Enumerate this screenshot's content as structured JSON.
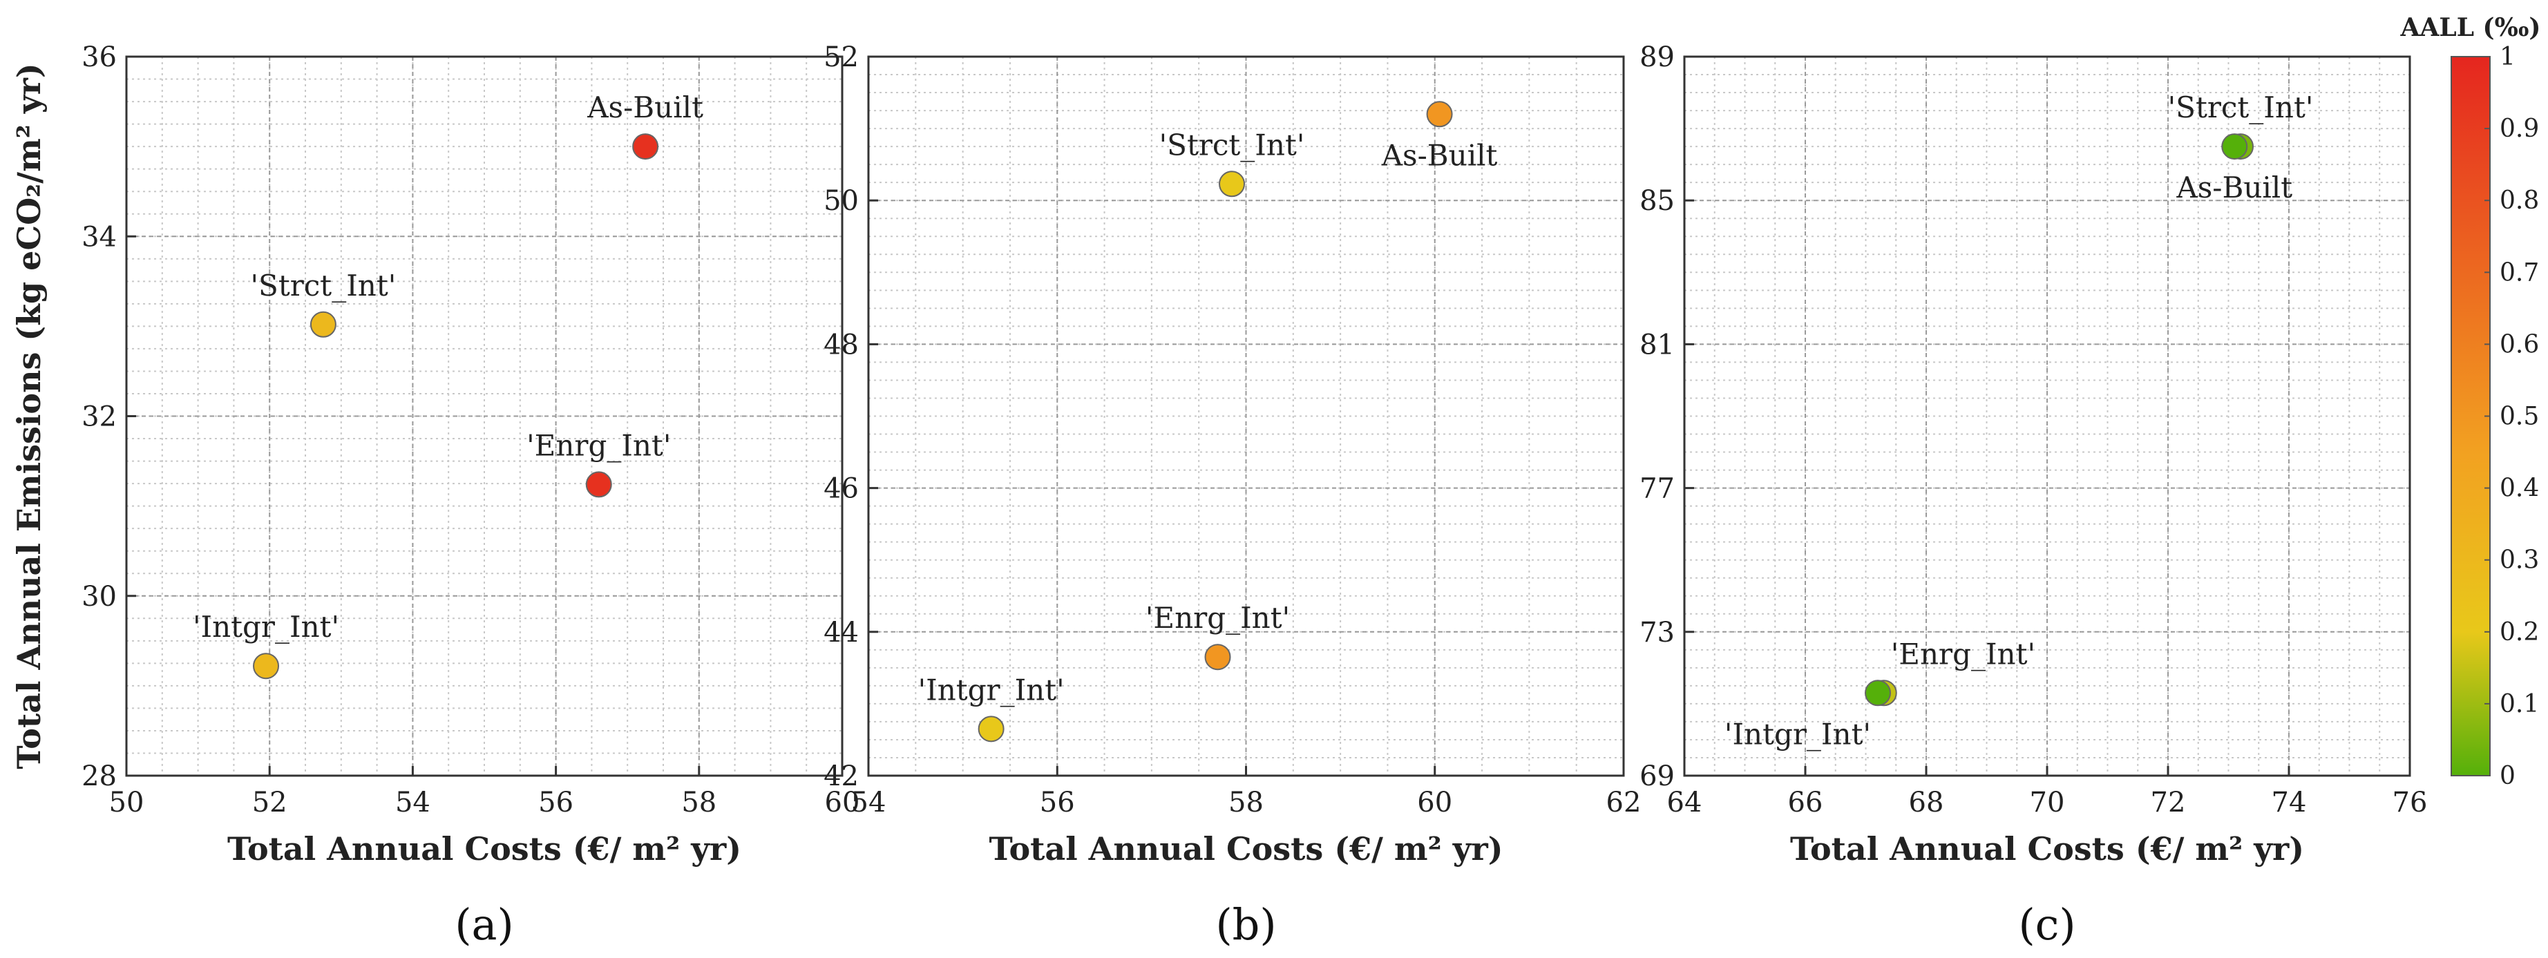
{
  "chart_data": [
    {
      "type": "scatter",
      "panel_label": "(a)",
      "xlabel": "Total Annual Costs (€/ m² yr)",
      "ylabel": "Total Annual Emissions (kg eCO₂/m² yr)",
      "xlim": [
        50,
        60
      ],
      "ylim": [
        28,
        36
      ],
      "xticks": [
        50,
        52,
        54,
        56,
        58,
        60
      ],
      "yticks": [
        28,
        30,
        32,
        34,
        36
      ],
      "grid": true,
      "points": [
        {
          "label": "As-Built",
          "x": 57.25,
          "y": 35.0,
          "aall": 0.95,
          "label_pos": "above"
        },
        {
          "label": "'Strct_Int'",
          "x": 52.75,
          "y": 33.02,
          "aall": 0.3,
          "label_pos": "above"
        },
        {
          "label": "'Enrg_Int'",
          "x": 56.6,
          "y": 31.24,
          "aall": 0.95,
          "label_pos": "above"
        },
        {
          "label": "'Intgr_Int'",
          "x": 51.95,
          "y": 29.22,
          "aall": 0.3,
          "label_pos": "above"
        }
      ]
    },
    {
      "type": "scatter",
      "panel_label": "(b)",
      "xlabel": "Total Annual Costs (€/ m² yr)",
      "ylabel": "",
      "xlim": [
        54,
        62
      ],
      "ylim": [
        42,
        52
      ],
      "xticks": [
        54,
        56,
        58,
        60,
        62
      ],
      "yticks": [
        42,
        44,
        46,
        48,
        50,
        52
      ],
      "grid": true,
      "points": [
        {
          "label": "As-Built",
          "x": 60.05,
          "y": 51.2,
          "aall": 0.5,
          "label_pos": "below"
        },
        {
          "label": "'Strct_Int'",
          "x": 57.85,
          "y": 50.23,
          "aall": 0.2,
          "label_pos": "above"
        },
        {
          "label": "'Enrg_Int'",
          "x": 57.7,
          "y": 43.65,
          "aall": 0.5,
          "label_pos": "above"
        },
        {
          "label": "'Intgr_Int'",
          "x": 55.3,
          "y": 42.65,
          "aall": 0.2,
          "label_pos": "above"
        }
      ]
    },
    {
      "type": "scatter",
      "panel_label": "(c)",
      "xlabel": "Total Annual Costs (€/ m² yr)",
      "ylabel": "",
      "xlim": [
        64,
        76
      ],
      "ylim": [
        69,
        89
      ],
      "xticks": [
        64,
        66,
        68,
        70,
        72,
        74,
        76
      ],
      "yticks": [
        69,
        73,
        77,
        81,
        85,
        89
      ],
      "grid": true,
      "points": [
        {
          "label": "'Strct_Int'",
          "x": 73.2,
          "y": 86.5,
          "aall": 0.05,
          "label_pos": "above"
        },
        {
          "label": "As-Built",
          "x": 73.1,
          "y": 86.5,
          "aall": 0.0,
          "label_pos": "below"
        },
        {
          "label": "'Enrg_Int'",
          "x": 67.3,
          "y": 71.3,
          "aall": 0.15,
          "label_pos": "above-right"
        },
        {
          "label": "'Intgr_Int'",
          "x": 67.2,
          "y": 71.3,
          "aall": 0.0,
          "label_pos": "below-left"
        }
      ]
    }
  ],
  "colorbar": {
    "title": "AALL (‰)",
    "range": [
      0,
      1
    ],
    "ticks": [
      "0",
      "0.1",
      "0.2",
      "0.3",
      "0.4",
      "0.5",
      "0.6",
      "0.7",
      "0.8",
      "0.9",
      "1"
    ],
    "colors": [
      "#55b00a",
      "#e8c81a",
      "#f2a121",
      "#e5261f"
    ]
  }
}
